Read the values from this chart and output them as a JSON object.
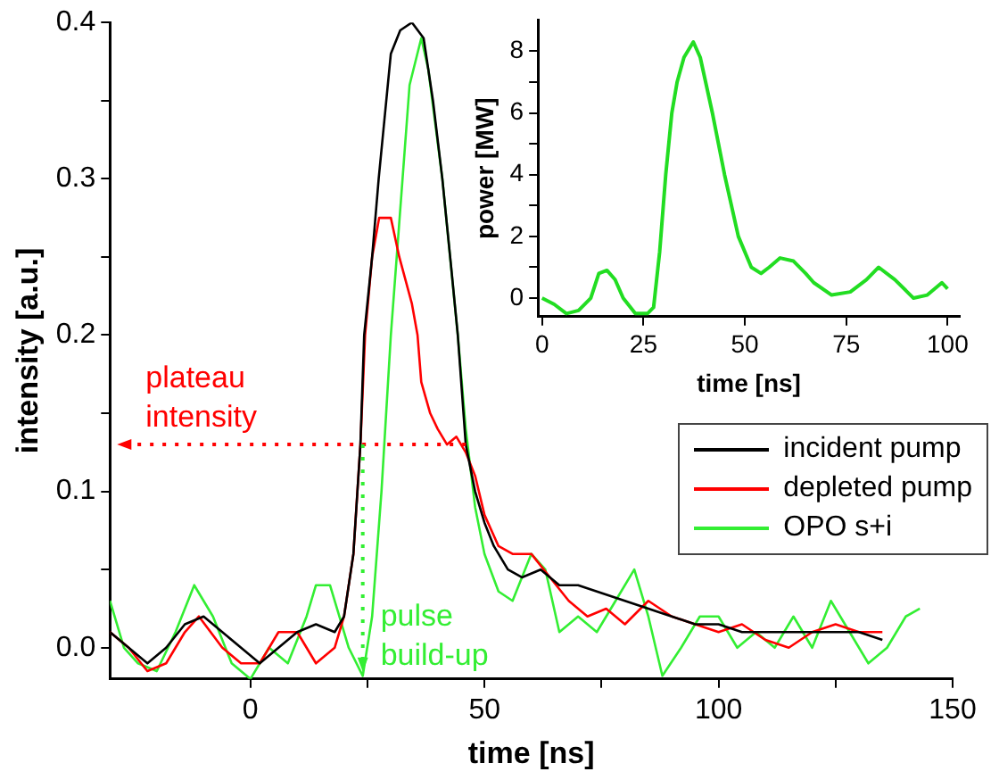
{
  "chart_data": [
    {
      "type": "line",
      "xlabel": "time [ns]",
      "ylabel": "intensity [a.u.]",
      "xlim": [
        -30,
        150
      ],
      "ylim": [
        -0.02,
        0.4
      ],
      "xticks": [
        0,
        {
          "value": 25,
          "label": null
        },
        50,
        {
          "value": 75,
          "label": null
        },
        100,
        {
          "value": 125,
          "label": null
        },
        150
      ],
      "yticks": [
        {
          "value": 0,
          "label": "0.0"
        },
        {
          "value": 0.05,
          "label": null
        },
        0.1,
        {
          "value": 0.15,
          "label": null
        },
        0.2,
        {
          "value": 0.25,
          "label": null
        },
        0.3,
        {
          "value": 0.35,
          "label": null
        },
        0.4
      ],
      "legend": "right",
      "line_style": "solid",
      "marker": "none",
      "annotations": [
        {
          "text": "plateau intensity",
          "x": 46,
          "y": 0.13
        },
        {
          "text": "pulse build-up",
          "x": 24,
          "y": 0.13
        }
      ],
      "series": [
        {
          "name": "incident pump",
          "color": "#000000",
          "x": [
            -30,
            -26,
            -22,
            -18,
            -14,
            -10,
            -6,
            -2,
            2,
            6,
            10,
            14,
            18,
            20,
            22,
            23.5,
            24.3,
            26,
            27.4,
            30,
            32,
            34.5,
            37,
            39,
            41,
            43,
            44.3,
            46,
            48,
            50,
            52,
            55,
            58,
            62,
            66,
            70,
            75,
            80,
            85,
            90,
            95,
            100,
            105,
            110,
            115,
            120,
            125,
            130,
            135
          ],
          "values": [
            0.01,
            0.0,
            -0.01,
            0.0,
            0.015,
            0.02,
            0.01,
            0.0,
            -0.01,
            0.0,
            0.01,
            0.015,
            0.01,
            0.02,
            0.06,
            0.13,
            0.2,
            0.25,
            0.3,
            0.38,
            0.395,
            0.4,
            0.39,
            0.35,
            0.3,
            0.24,
            0.2,
            0.13,
            0.1,
            0.08,
            0.065,
            0.05,
            0.045,
            0.05,
            0.04,
            0.04,
            0.035,
            0.03,
            0.025,
            0.02,
            0.015,
            0.015,
            0.01,
            0.01,
            0.01,
            0.01,
            0.01,
            0.01,
            0.005
          ]
        },
        {
          "name": "depleted pump",
          "color": "#ff0000",
          "x": [
            -30,
            -26,
            -22,
            -18,
            -14,
            -11,
            -6,
            -2,
            2,
            6,
            10,
            14,
            18,
            20,
            22,
            23.5,
            24.5,
            26,
            27.5,
            30,
            31.8,
            34.5,
            35.7,
            36.5,
            38.4,
            40,
            42,
            44,
            46,
            48,
            50,
            53,
            56,
            60,
            64,
            68,
            72,
            76,
            80,
            85,
            90,
            95,
            100,
            105,
            110,
            115,
            120,
            125,
            130,
            135
          ],
          "values": [
            0.01,
            0.0,
            -0.015,
            -0.01,
            0.01,
            0.02,
            0.0,
            -0.01,
            -0.01,
            0.01,
            0.01,
            -0.01,
            0.0,
            0.02,
            0.06,
            0.13,
            0.2,
            0.25,
            0.275,
            0.275,
            0.25,
            0.22,
            0.2,
            0.17,
            0.15,
            0.14,
            0.13,
            0.135,
            0.125,
            0.11,
            0.085,
            0.065,
            0.06,
            0.06,
            0.045,
            0.03,
            0.02,
            0.025,
            0.015,
            0.03,
            0.02,
            0.015,
            0.01,
            0.015,
            0.005,
            0.0,
            0.01,
            0.015,
            0.01,
            0.01
          ]
        },
        {
          "name": "OPO s+i",
          "color": "#33ee33",
          "x": [
            -30,
            -27,
            -24,
            -20,
            -16,
            -12,
            -8,
            -4,
            0,
            4,
            8,
            12,
            14,
            17,
            19,
            21,
            24,
            26,
            28,
            30,
            32.5,
            34,
            36.5,
            38,
            41,
            44.3,
            46,
            48,
            50,
            53,
            56,
            60,
            63,
            66,
            70,
            74,
            78,
            82,
            85,
            88,
            92,
            96,
            100,
            104,
            108,
            112,
            116,
            120,
            124,
            128,
            132,
            136,
            140,
            143
          ],
          "values": [
            0.03,
            0.0,
            -0.01,
            -0.015,
            0.01,
            0.04,
            0.02,
            -0.01,
            -0.02,
            0.0,
            -0.01,
            0.02,
            0.04,
            0.04,
            0.02,
            0.0,
            -0.018,
            0.02,
            0.1,
            0.2,
            0.3,
            0.36,
            0.39,
            0.37,
            0.3,
            0.2,
            0.14,
            0.09,
            0.06,
            0.036,
            0.03,
            0.06,
            0.05,
            0.01,
            0.02,
            0.01,
            0.03,
            0.05,
            0.02,
            -0.018,
            0.0,
            0.02,
            0.02,
            0.0,
            0.01,
            0.0,
            0.02,
            0.0,
            0.03,
            0.01,
            -0.01,
            0.0,
            0.02,
            0.025
          ]
        }
      ]
    },
    {
      "type": "line",
      "xlabel": "time [ns]",
      "ylabel": "power [MW]",
      "xlim": [
        -1,
        103
      ],
      "ylim": [
        -0.6,
        9
      ],
      "xticks": [
        0,
        25,
        50,
        75,
        100
      ],
      "yticks": [
        0,
        {
          "value": 1,
          "label": null
        },
        2,
        {
          "value": 3,
          "label": null
        },
        4,
        {
          "value": 5,
          "label": null
        },
        6,
        {
          "value": 7,
          "label": null
        },
        8
      ],
      "line_style": "solid",
      "marker": "none",
      "series": [
        {
          "color": "#22dd22",
          "x": [
            0,
            3,
            6,
            9,
            12,
            14,
            16,
            18,
            20,
            23,
            26,
            27.5,
            29,
            30.5,
            32,
            33.3,
            35,
            37.3,
            39,
            42,
            45,
            48.4,
            51.6,
            54,
            56,
            58.7,
            62,
            65,
            67,
            71.4,
            76,
            80,
            83,
            87,
            91.6,
            95,
            98.6,
            100
          ],
          "values": [
            0,
            -0.2,
            -0.5,
            -0.4,
            0,
            0.8,
            0.9,
            0.6,
            0,
            -0.5,
            -0.5,
            -0.3,
            1.5,
            4,
            6,
            7,
            7.8,
            8.3,
            7.8,
            6,
            4,
            2,
            1,
            0.8,
            1.0,
            1.3,
            1.2,
            0.8,
            0.5,
            0.1,
            0.2,
            0.6,
            1.0,
            0.6,
            0,
            0.1,
            0.5,
            0.3
          ]
        }
      ]
    }
  ]
}
